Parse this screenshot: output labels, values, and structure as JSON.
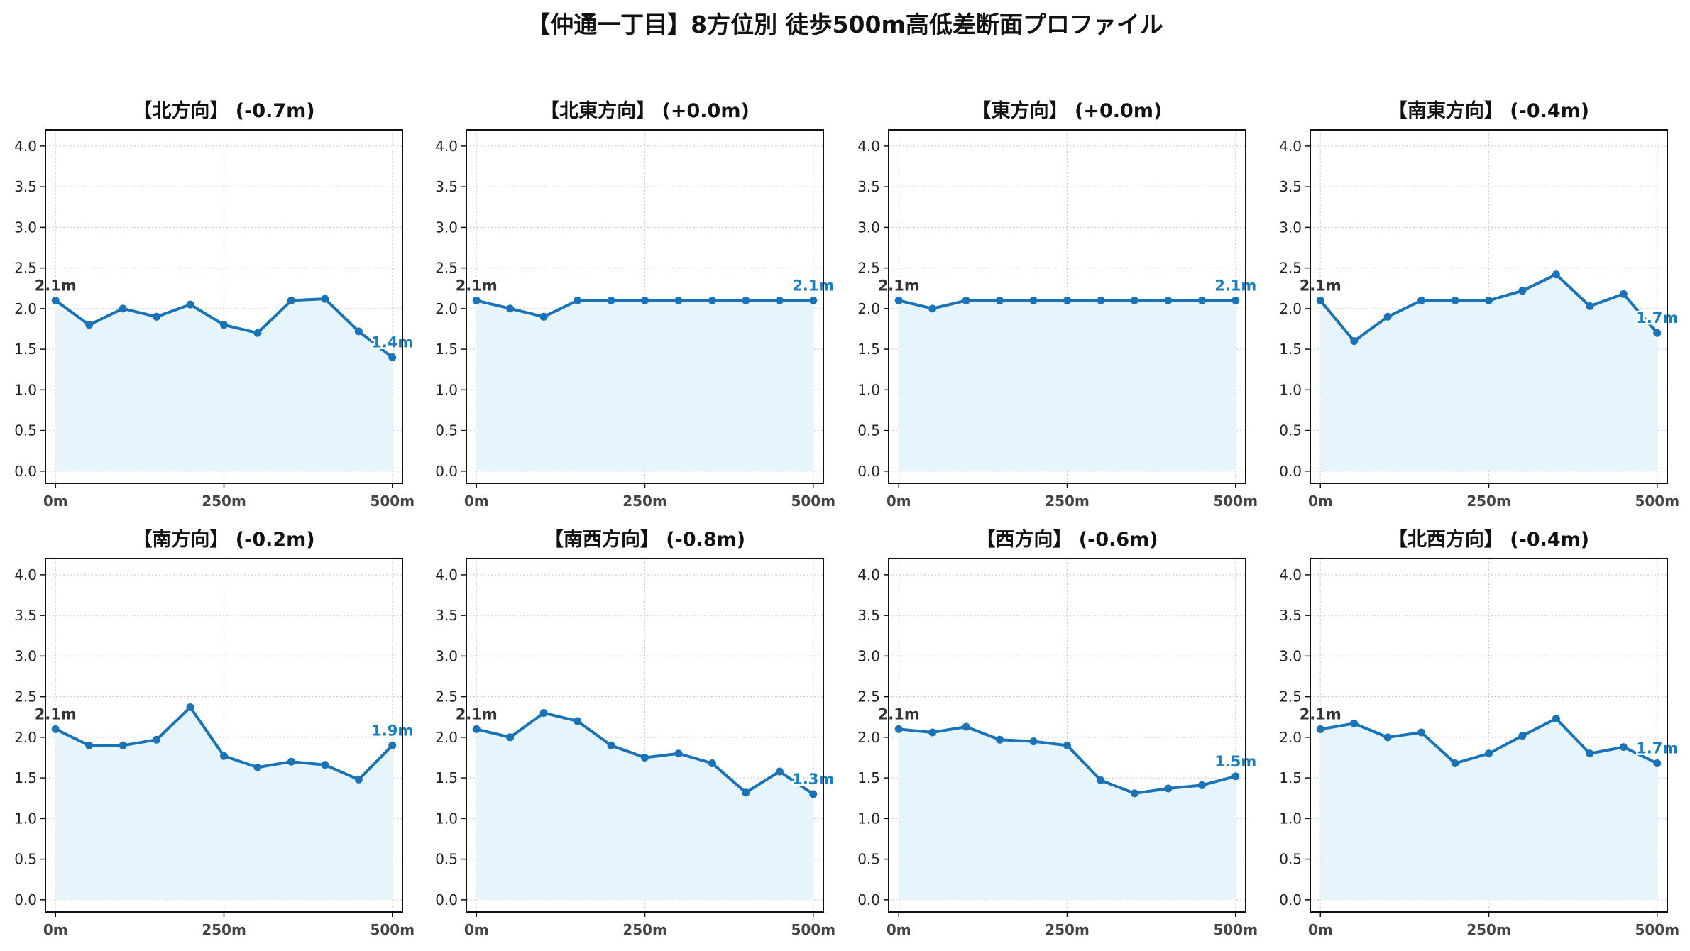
{
  "title": "【仲通一丁目】8方位別 徒歩500m高低差断面プロファイル",
  "colors": {
    "line": "#1a73b6",
    "fill": "#e6f5fb",
    "grid": "#cccccc",
    "start_label": "#333333",
    "end_label": "#1a7fc1"
  },
  "chart_data": [
    {
      "type": "area",
      "title": "【北方向】 (-0.7m)",
      "x": [
        0,
        50,
        100,
        150,
        200,
        250,
        300,
        350,
        400,
        450,
        500
      ],
      "y": [
        2.1,
        1.8,
        2.0,
        1.9,
        2.05,
        1.8,
        1.7,
        2.1,
        2.12,
        1.72,
        1.4
      ],
      "start_label": "2.1m",
      "end_label": "1.4m",
      "xticks": [
        "0m",
        "250m",
        "500m"
      ],
      "yticks": [
        "0.0",
        "0.5",
        "1.0",
        "1.5",
        "2.0",
        "2.5",
        "3.0",
        "3.5",
        "4.0"
      ],
      "xlim": [
        -15,
        515
      ],
      "ylim": [
        -0.15,
        4.2
      ],
      "grid": true
    },
    {
      "type": "area",
      "title": "【北東方向】 (+0.0m)",
      "x": [
        0,
        50,
        100,
        150,
        200,
        250,
        300,
        350,
        400,
        450,
        500
      ],
      "y": [
        2.1,
        2.0,
        1.9,
        2.1,
        2.1,
        2.1,
        2.1,
        2.1,
        2.1,
        2.1,
        2.1
      ],
      "start_label": "2.1m",
      "end_label": "2.1m",
      "xticks": [
        "0m",
        "250m",
        "500m"
      ],
      "yticks": [
        "0.0",
        "0.5",
        "1.0",
        "1.5",
        "2.0",
        "2.5",
        "3.0",
        "3.5",
        "4.0"
      ],
      "xlim": [
        -15,
        515
      ],
      "ylim": [
        -0.15,
        4.2
      ],
      "grid": true
    },
    {
      "type": "area",
      "title": "【東方向】 (+0.0m)",
      "x": [
        0,
        50,
        100,
        150,
        200,
        250,
        300,
        350,
        400,
        450,
        500
      ],
      "y": [
        2.1,
        2.0,
        2.1,
        2.1,
        2.1,
        2.1,
        2.1,
        2.1,
        2.1,
        2.1,
        2.1
      ],
      "start_label": "2.1m",
      "end_label": "2.1m",
      "xticks": [
        "0m",
        "250m",
        "500m"
      ],
      "yticks": [
        "0.0",
        "0.5",
        "1.0",
        "1.5",
        "2.0",
        "2.5",
        "3.0",
        "3.5",
        "4.0"
      ],
      "xlim": [
        -15,
        515
      ],
      "ylim": [
        -0.15,
        4.2
      ],
      "grid": true
    },
    {
      "type": "area",
      "title": "【南東方向】 (-0.4m)",
      "x": [
        0,
        50,
        100,
        150,
        200,
        250,
        300,
        350,
        400,
        450,
        500
      ],
      "y": [
        2.1,
        1.6,
        1.9,
        2.1,
        2.1,
        2.1,
        2.22,
        2.42,
        2.03,
        2.18,
        1.7
      ],
      "start_label": "2.1m",
      "end_label": "1.7m",
      "xticks": [
        "0m",
        "250m",
        "500m"
      ],
      "yticks": [
        "0.0",
        "0.5",
        "1.0",
        "1.5",
        "2.0",
        "2.5",
        "3.0",
        "3.5",
        "4.0"
      ],
      "xlim": [
        -15,
        515
      ],
      "ylim": [
        -0.15,
        4.2
      ],
      "grid": true
    },
    {
      "type": "area",
      "title": "【南方向】 (-0.2m)",
      "x": [
        0,
        50,
        100,
        150,
        200,
        250,
        300,
        350,
        400,
        450,
        500
      ],
      "y": [
        2.1,
        1.9,
        1.9,
        1.97,
        2.37,
        1.77,
        1.63,
        1.7,
        1.66,
        1.48,
        1.9
      ],
      "start_label": "2.1m",
      "end_label": "1.9m",
      "xticks": [
        "0m",
        "250m",
        "500m"
      ],
      "yticks": [
        "0.0",
        "0.5",
        "1.0",
        "1.5",
        "2.0",
        "2.5",
        "3.0",
        "3.5",
        "4.0"
      ],
      "xlim": [
        -15,
        515
      ],
      "ylim": [
        -0.15,
        4.2
      ],
      "grid": true
    },
    {
      "type": "area",
      "title": "【南西方向】 (-0.8m)",
      "x": [
        0,
        50,
        100,
        150,
        200,
        250,
        300,
        350,
        400,
        450,
        500
      ],
      "y": [
        2.1,
        2.0,
        2.3,
        2.2,
        1.9,
        1.75,
        1.8,
        1.68,
        1.32,
        1.58,
        1.3
      ],
      "start_label": "2.1m",
      "end_label": "1.3m",
      "xticks": [
        "0m",
        "250m",
        "500m"
      ],
      "yticks": [
        "0.0",
        "0.5",
        "1.0",
        "1.5",
        "2.0",
        "2.5",
        "3.0",
        "3.5",
        "4.0"
      ],
      "xlim": [
        -15,
        515
      ],
      "ylim": [
        -0.15,
        4.2
      ],
      "grid": true
    },
    {
      "type": "area",
      "title": "【西方向】 (-0.6m)",
      "x": [
        0,
        50,
        100,
        150,
        200,
        250,
        300,
        350,
        400,
        450,
        500
      ],
      "y": [
        2.1,
        2.06,
        2.13,
        1.97,
        1.95,
        1.9,
        1.47,
        1.31,
        1.37,
        1.41,
        1.52
      ],
      "start_label": "2.1m",
      "end_label": "1.5m",
      "xticks": [
        "0m",
        "250m",
        "500m"
      ],
      "yticks": [
        "0.0",
        "0.5",
        "1.0",
        "1.5",
        "2.0",
        "2.5",
        "3.0",
        "3.5",
        "4.0"
      ],
      "xlim": [
        -15,
        515
      ],
      "ylim": [
        -0.15,
        4.2
      ],
      "grid": true
    },
    {
      "type": "area",
      "title": "【北西方向】 (-0.4m)",
      "x": [
        0,
        50,
        100,
        150,
        200,
        250,
        300,
        350,
        400,
        450,
        500
      ],
      "y": [
        2.1,
        2.17,
        2.0,
        2.06,
        1.68,
        1.8,
        2.02,
        2.23,
        1.8,
        1.88,
        1.68
      ],
      "start_label": "2.1m",
      "end_label": "1.7m",
      "xticks": [
        "0m",
        "250m",
        "500m"
      ],
      "yticks": [
        "0.0",
        "0.5",
        "1.0",
        "1.5",
        "2.0",
        "2.5",
        "3.0",
        "3.5",
        "4.0"
      ],
      "xlim": [
        -15,
        515
      ],
      "ylim": [
        -0.15,
        4.2
      ],
      "grid": true
    }
  ]
}
